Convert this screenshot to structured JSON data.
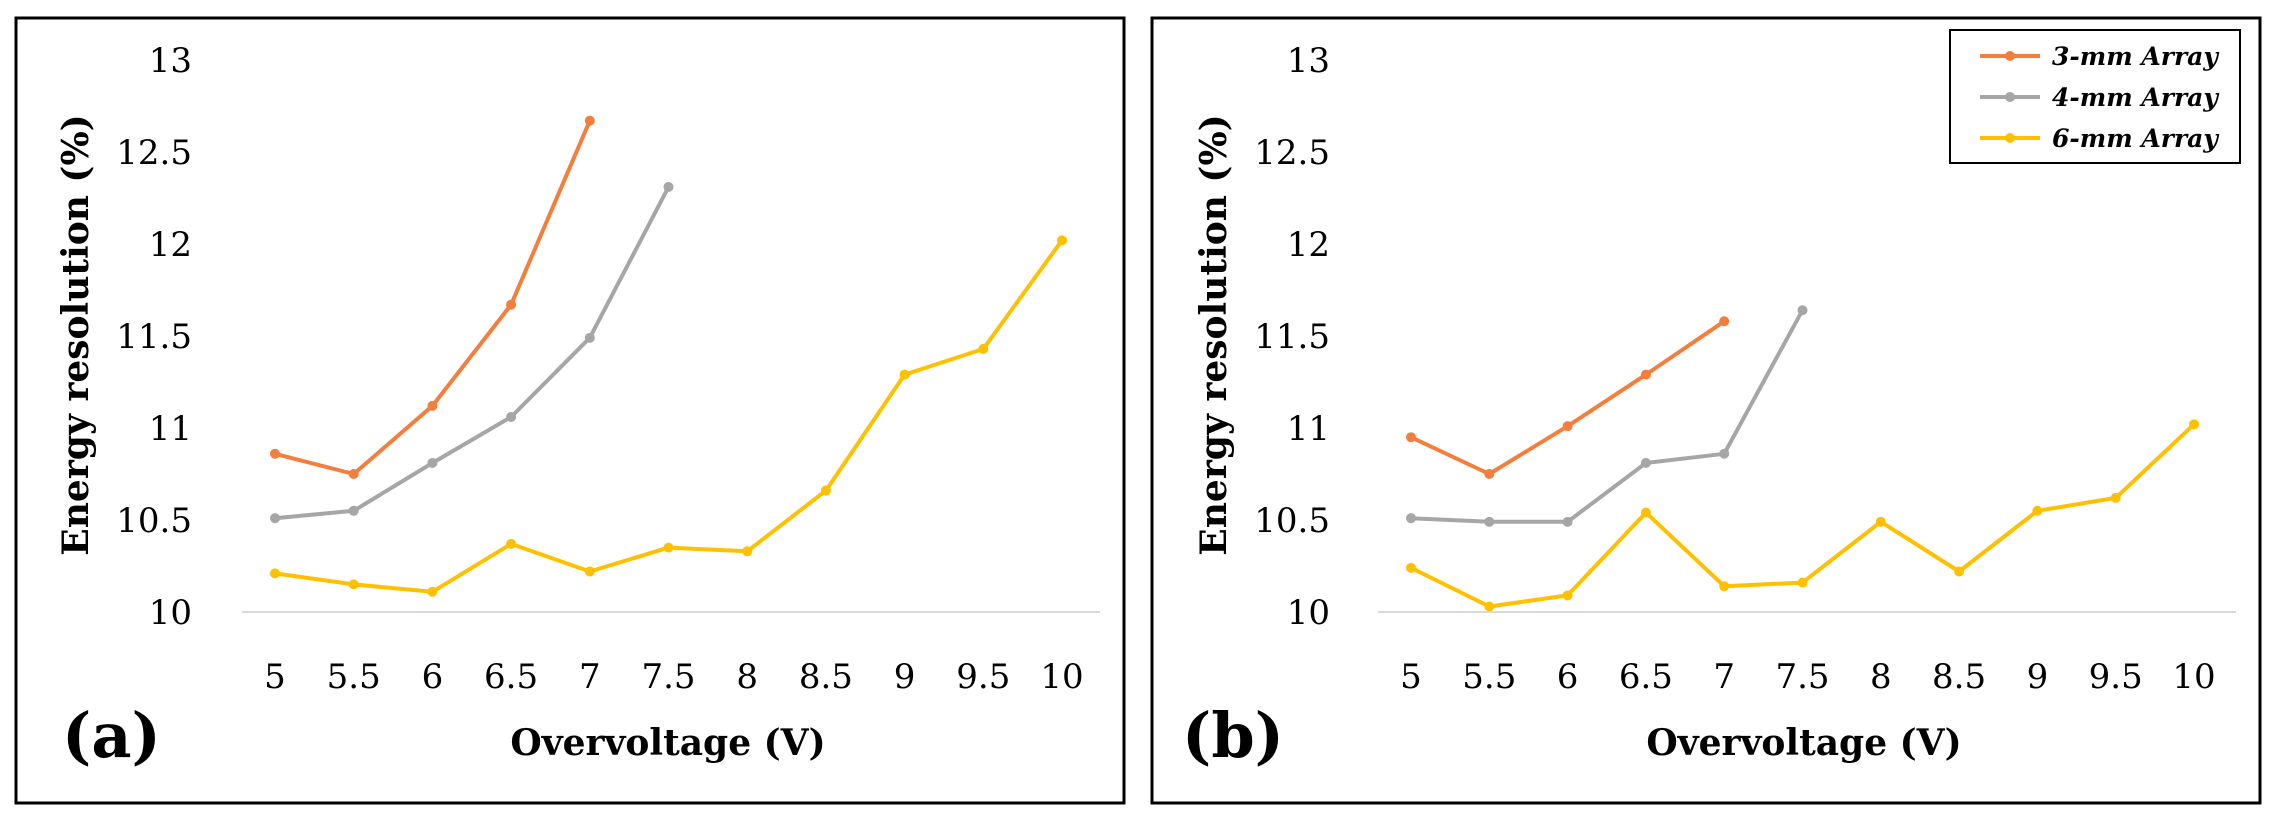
{
  "colors": {
    "series_3mm": "#F47E3C",
    "series_4mm": "#A6A6A6",
    "series_6mm": "#FFC000",
    "gridline": "#D9D9D9",
    "frame": "#000000"
  },
  "chart_data": [
    {
      "type": "line",
      "panel_label": "(a)",
      "title": "",
      "xlabel": "Overvoltage (V)",
      "ylabel": "Energy resolution (%)",
      "x_ticks": [
        "5",
        "5.5",
        "6",
        "6.5",
        "7",
        "7.5",
        "8",
        "8.5",
        "9",
        "9.5",
        "10"
      ],
      "y_ticks": [
        "10",
        "10.5",
        "11",
        "11.5",
        "12",
        "12.5",
        "13"
      ],
      "ylim": [
        10,
        13
      ],
      "grid": "horizontal baseline only",
      "series": [
        {
          "name": "3-mm Array",
          "x": [
            5,
            5.5,
            6,
            6.5,
            7
          ],
          "values": [
            10.86,
            10.75,
            11.12,
            11.67,
            12.67
          ]
        },
        {
          "name": "4-mm Array",
          "x": [
            5,
            5.5,
            6,
            6.5,
            7,
            7.5
          ],
          "values": [
            10.51,
            10.55,
            10.81,
            11.06,
            11.49,
            12.31
          ]
        },
        {
          "name": "6-mm Array",
          "x": [
            5,
            5.5,
            6,
            6.5,
            7,
            7.5,
            8,
            8.5,
            9,
            9.5,
            10
          ],
          "values": [
            10.21,
            10.15,
            10.11,
            10.37,
            10.22,
            10.35,
            10.33,
            10.66,
            11.29,
            11.43,
            12.02
          ]
        }
      ]
    },
    {
      "type": "line",
      "panel_label": "(b)",
      "title": "",
      "xlabel": "Overvoltage (V)",
      "ylabel": "Energy resolution (%)",
      "x_ticks": [
        "5",
        "5.5",
        "6",
        "6.5",
        "7",
        "7.5",
        "8",
        "8.5",
        "9",
        "9.5",
        "10"
      ],
      "y_ticks": [
        "10",
        "10.5",
        "11",
        "11.5",
        "12",
        "12.5",
        "13"
      ],
      "ylim": [
        10,
        13
      ],
      "grid": "horizontal baseline only",
      "legend": {
        "placement": "top-right",
        "entries": [
          "3-mm Array",
          "4-mm Array",
          "6-mm Array"
        ]
      },
      "series": [
        {
          "name": "3-mm Array",
          "x": [
            5,
            5.5,
            6,
            6.5,
            7
          ],
          "values": [
            10.95,
            10.75,
            11.01,
            11.29,
            11.58
          ]
        },
        {
          "name": "4-mm Array",
          "x": [
            5,
            5.5,
            6,
            6.5,
            7,
            7.5
          ],
          "values": [
            10.51,
            10.49,
            10.49,
            10.81,
            10.86,
            11.64
          ]
        },
        {
          "name": "6-mm Array",
          "x": [
            5,
            5.5,
            6,
            6.5,
            7,
            7.5,
            8,
            8.5,
            9,
            9.5,
            10
          ],
          "values": [
            10.24,
            10.03,
            10.09,
            10.54,
            10.14,
            10.16,
            10.49,
            10.22,
            10.55,
            10.62,
            11.02
          ]
        }
      ]
    }
  ]
}
